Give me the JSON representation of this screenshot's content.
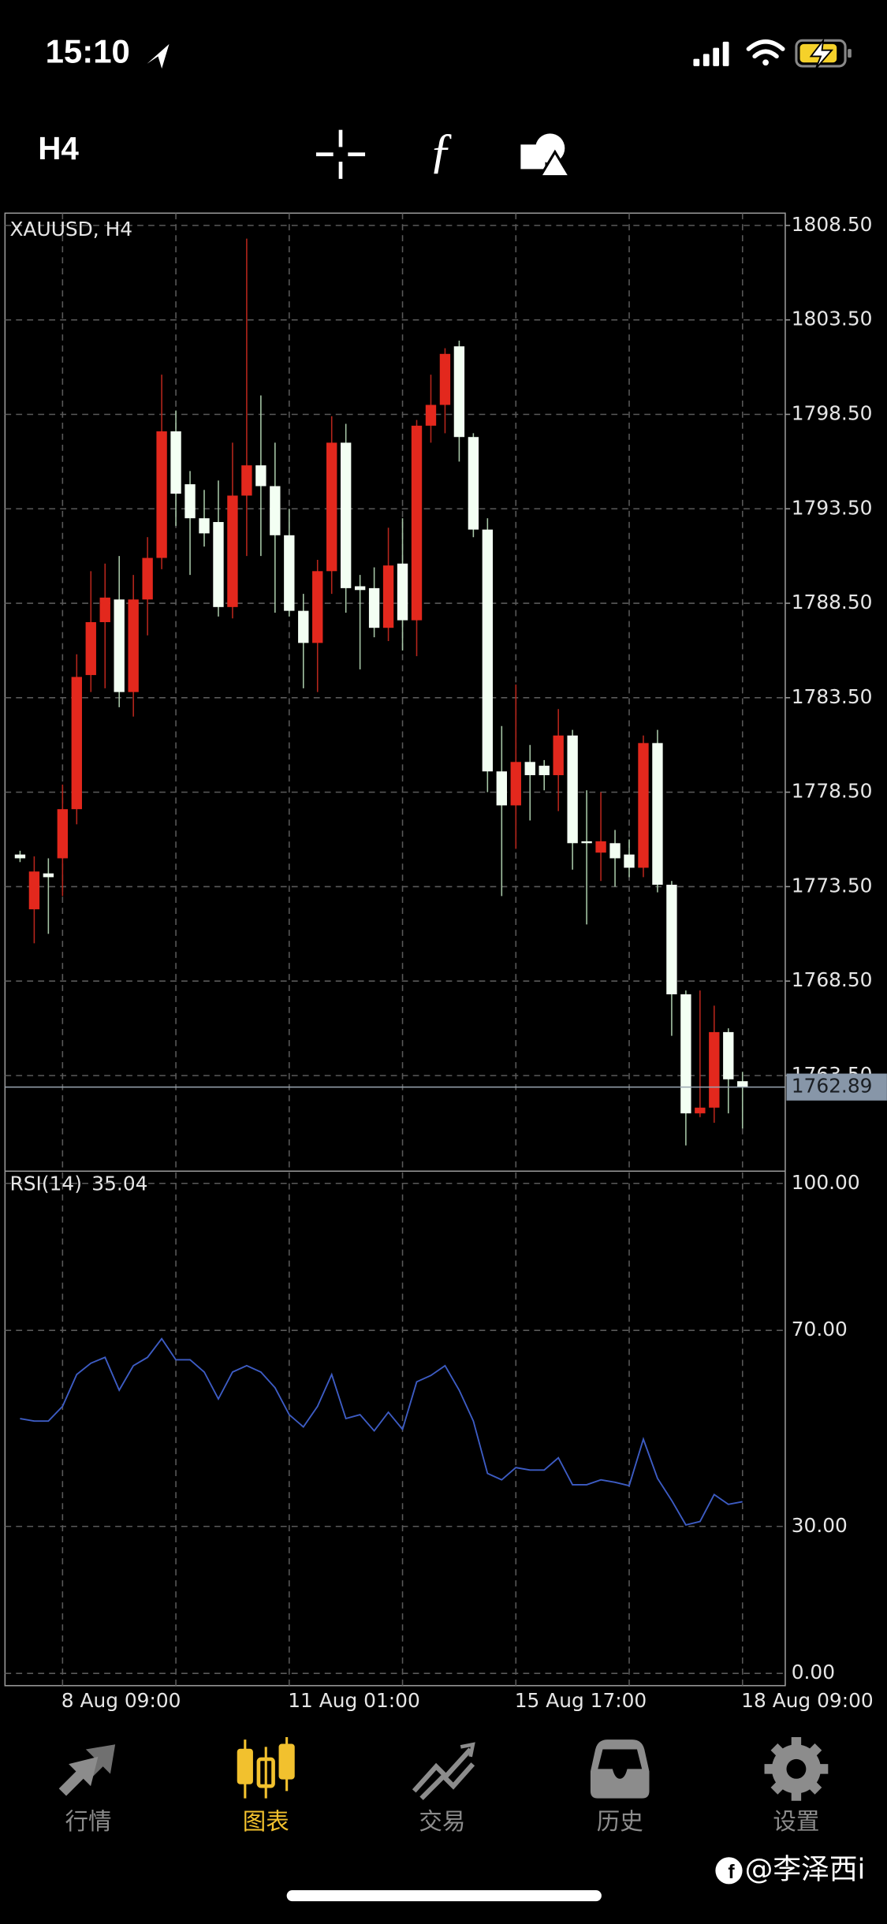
{
  "status_bar": {
    "time": "15:10"
  },
  "toolbar": {
    "timeframe": "H4"
  },
  "chart_data": [
    {
      "type": "candlestick",
      "title": "XAUUSD, H4",
      "categories": [
        null,
        null,
        null,
        "8 Aug 09:00",
        null,
        null,
        null,
        null,
        null,
        null,
        null,
        null,
        null,
        null,
        null,
        null,
        null,
        null,
        null,
        "11 Aug 01:00",
        null,
        null,
        null,
        null,
        null,
        null,
        null,
        null,
        null,
        null,
        null,
        null,
        null,
        null,
        null,
        "15 Aug 17:00",
        null,
        null,
        null,
        null,
        null,
        null,
        null,
        null,
        null,
        null,
        null,
        null,
        null,
        null,
        null,
        "18 Aug 09:00"
      ],
      "open": [
        1775.2,
        1772.3,
        1774.2,
        1775.0,
        1777.6,
        1784.7,
        1787.5,
        1788.7,
        1783.8,
        1788.7,
        1790.9,
        1797.6,
        1794.8,
        1793.0,
        1792.8,
        1788.3,
        1794.2,
        1795.8,
        1794.7,
        1792.1,
        1788.1,
        1786.4,
        1790.2,
        1797.0,
        1789.4,
        1789.3,
        1787.2,
        1790.6,
        1787.6,
        1797.9,
        1799.0,
        1802.1,
        1797.3,
        1792.4,
        1779.6,
        1777.8,
        1780.1,
        1779.9,
        1779.4,
        1781.5,
        1775.9,
        1775.3,
        1775.8,
        1775.2,
        1774.5,
        1781.1,
        1773.6,
        1767.8,
        1761.5,
        1761.8,
        1765.8,
        1763.2
      ],
      "high": [
        1775.4,
        1775.1,
        1775.0,
        1778.9,
        1785.8,
        1790.2,
        1790.6,
        1791.0,
        1790.0,
        1792.0,
        1800.6,
        1798.7,
        1795.5,
        1794.5,
        1795.0,
        1797.0,
        1807.8,
        1799.5,
        1797.0,
        1793.5,
        1789.0,
        1790.8,
        1798.4,
        1798.0,
        1790.0,
        1790.4,
        1792.5,
        1793.0,
        1798.2,
        1800.6,
        1802.0,
        1802.4,
        1797.5,
        1793.0,
        1782.0,
        1784.2,
        1781.0,
        1780.2,
        1782.9,
        1781.8,
        1778.6,
        1778.5,
        1776.5,
        1776.0,
        1781.5,
        1781.8,
        1773.8,
        1768.0,
        1768.0,
        1767.2,
        1766.0,
        1763.7
      ],
      "low": [
        1774.8,
        1770.5,
        1771.0,
        1773.0,
        1776.8,
        1783.8,
        1784.0,
        1783.0,
        1782.5,
        1786.8,
        1790.3,
        1792.6,
        1790.0,
        1791.5,
        1787.8,
        1787.7,
        1791.0,
        1791.0,
        1788.0,
        1787.8,
        1784.0,
        1783.8,
        1789.0,
        1788.0,
        1785.0,
        1786.7,
        1786.5,
        1786.0,
        1785.7,
        1797.0,
        1797.5,
        1796.0,
        1792.0,
        1778.5,
        1773.0,
        1775.5,
        1777.0,
        1778.6,
        1777.5,
        1774.4,
        1771.5,
        1773.8,
        1773.5,
        1774.0,
        1774.0,
        1773.2,
        1765.6,
        1759.8,
        1761.3,
        1761.0,
        1761.5,
        1760.7
      ],
      "close": [
        1775.0,
        1774.3,
        1774.0,
        1777.6,
        1784.6,
        1787.5,
        1788.8,
        1783.8,
        1788.7,
        1790.9,
        1797.6,
        1794.3,
        1793.0,
        1792.2,
        1788.3,
        1794.2,
        1795.8,
        1794.7,
        1792.1,
        1788.1,
        1786.4,
        1790.2,
        1797.0,
        1789.3,
        1789.2,
        1787.2,
        1790.5,
        1787.6,
        1797.9,
        1799.0,
        1801.7,
        1797.3,
        1792.4,
        1779.6,
        1777.8,
        1780.1,
        1779.4,
        1779.4,
        1781.5,
        1775.8,
        1775.8,
        1775.9,
        1775.0,
        1774.5,
        1781.1,
        1773.6,
        1767.8,
        1761.5,
        1761.8,
        1765.8,
        1763.3,
        1762.89
      ],
      "up_color": "#e3281d",
      "down_color": "#f3fff3",
      "ylim": [
        1758.44,
        1809.15
      ],
      "yticks": [
        {
          "value": 1763.5,
          "label": "1763.50"
        },
        {
          "value": 1768.5,
          "label": "1768.50"
        },
        {
          "value": 1773.5,
          "label": "1773.50"
        },
        {
          "value": 1778.5,
          "label": "1778.50"
        },
        {
          "value": 1783.5,
          "label": "1783.50"
        },
        {
          "value": 1788.5,
          "label": "1788.50"
        },
        {
          "value": 1793.5,
          "label": "1793.50"
        },
        {
          "value": 1798.5,
          "label": "1798.50"
        },
        {
          "value": 1803.5,
          "label": "1803.50"
        },
        {
          "value": 1808.5,
          "label": "1808.50"
        }
      ],
      "grid": true
    },
    {
      "type": "line",
      "title": "RSI(14)",
      "series": [
        {
          "name": "RSI(14)",
          "color": "#3d5cc4",
          "values": [
            52,
            51.5,
            51.5,
            54.5,
            61,
            63.3,
            64.5,
            57.8,
            62.8,
            64.5,
            68.3,
            64,
            64,
            61.5,
            56,
            61.5,
            62.8,
            61.5,
            58.3,
            52.8,
            50.3,
            54.5,
            61,
            52,
            52.8,
            49.5,
            53.3,
            49.8,
            59.5,
            60.8,
            62.8,
            57.8,
            51.5,
            40.8,
            39.5,
            42,
            41.5,
            41.5,
            44,
            38.5,
            38.5,
            39.5,
            39,
            38.3,
            47.8,
            39.8,
            35.3,
            30.3,
            31,
            36.5,
            34.5,
            35.04
          ]
        }
      ],
      "ylim": [
        -2.5,
        102.5
      ],
      "yticks": [
        {
          "value": 0,
          "label": "0.00"
        },
        {
          "value": 30,
          "label": "30.00"
        },
        {
          "value": 70,
          "label": "70.00"
        },
        {
          "value": 100,
          "label": "100.00"
        }
      ],
      "grid": true
    }
  ],
  "tab_bar": {
    "tabs": [
      "行情",
      "图表",
      "交易",
      "历史",
      "设置"
    ],
    "active_tab": 1
  },
  "watermark": "@李泽西i"
}
